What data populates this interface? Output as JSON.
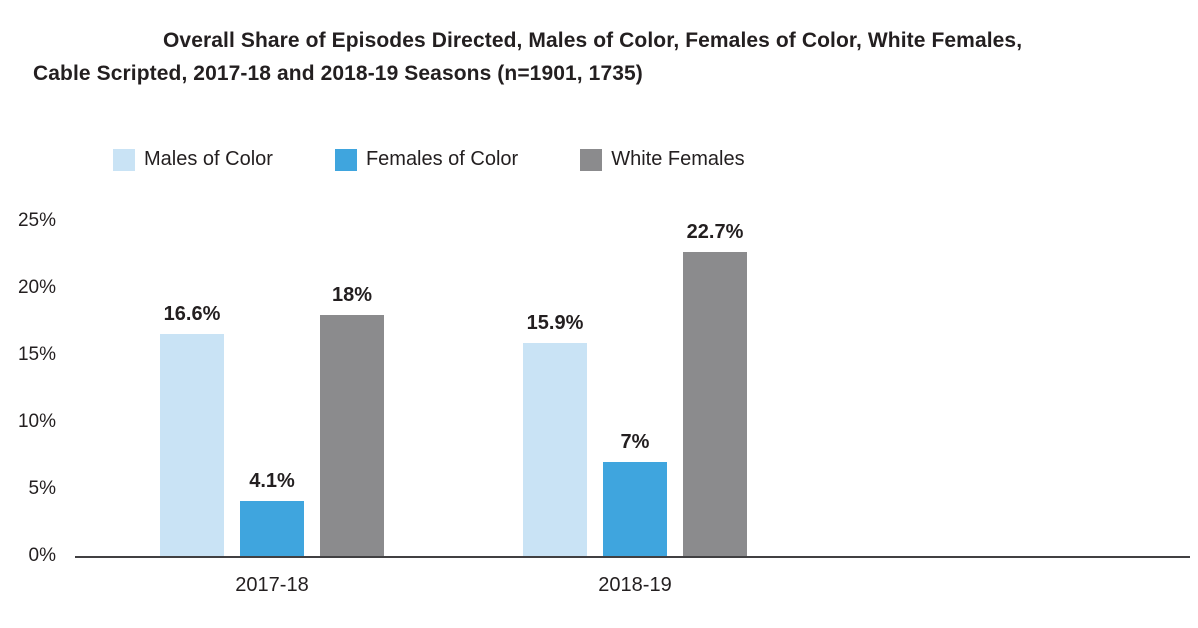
{
  "title": {
    "line1": "Overall Share of Episodes Directed, Males of Color, Females of Color, White Females,",
    "line2": "Cable Scripted, 2017-18 and 2018-19 Seasons (n=1901, 1735)"
  },
  "legend": [
    {
      "label": "Males of Color",
      "color": "#c9e3f5"
    },
    {
      "label": "Females of Color",
      "color": "#3fa5de"
    },
    {
      "label": "White Females",
      "color": "#8b8b8d"
    }
  ],
  "colors": {
    "text": "#231f20",
    "axis_line": "#414042"
  },
  "chart_data": {
    "type": "bar",
    "title": "Overall Share of Episodes Directed, Males of Color, Females of Color, White Females, Cable Scripted, 2017-18 and 2018-19 Seasons (n=1901, 1735)",
    "categories": [
      "2017-18",
      "2018-19"
    ],
    "series": [
      {
        "name": "Males of Color",
        "color": "#c9e3f5",
        "values": [
          16.6,
          15.9
        ],
        "labels": [
          "16.6%",
          "15.9%"
        ]
      },
      {
        "name": "Females of Color",
        "color": "#3fa5de",
        "values": [
          4.1,
          7
        ],
        "labels": [
          "4.1%",
          "7%"
        ]
      },
      {
        "name": "White Females",
        "color": "#8b8b8d",
        "values": [
          18,
          22.7
        ],
        "labels": [
          "18%",
          "22.7%"
        ]
      }
    ],
    "xlabel": "",
    "ylabel": "",
    "ylim": [
      0,
      25
    ],
    "yticks": [
      {
        "value": 25,
        "label": "25%"
      },
      {
        "value": 20,
        "label": "20%"
      },
      {
        "value": 15,
        "label": "15%"
      },
      {
        "value": 10,
        "label": "10%"
      },
      {
        "value": 5,
        "label": "5%"
      },
      {
        "value": 0,
        "label": "0%"
      }
    ],
    "grid": false,
    "legend_position": "top-left"
  }
}
